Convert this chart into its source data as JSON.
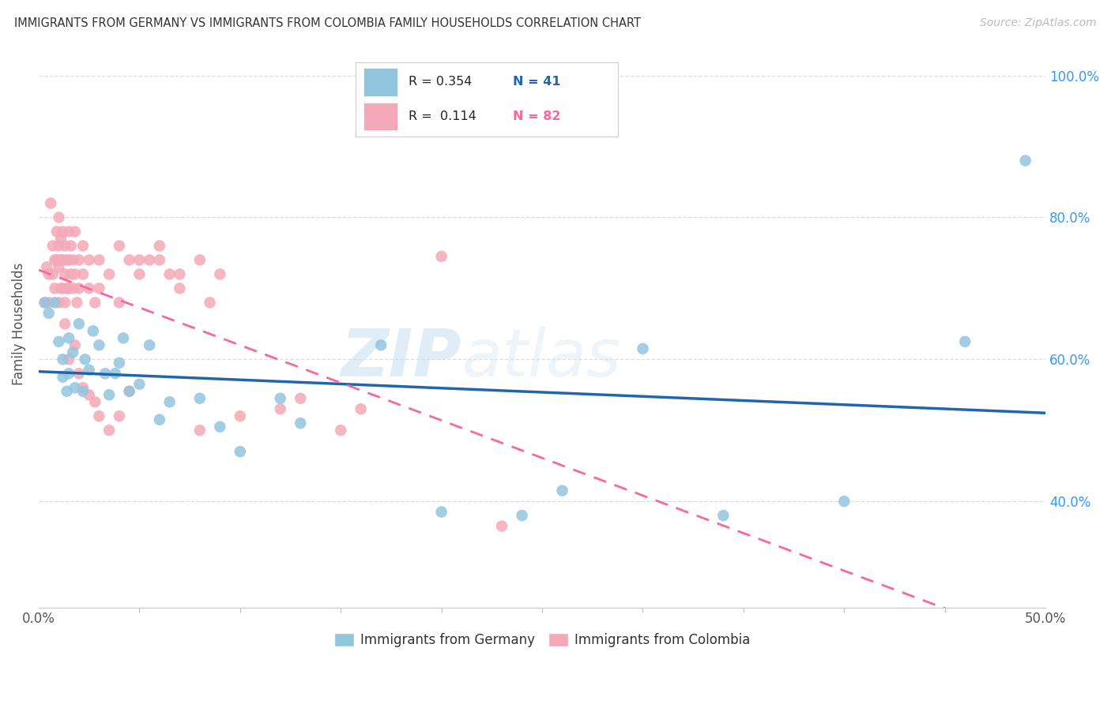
{
  "title": "IMMIGRANTS FROM GERMANY VS IMMIGRANTS FROM COLOMBIA FAMILY HOUSEHOLDS CORRELATION CHART",
  "source": "Source: ZipAtlas.com",
  "ylabel": "Family Households",
  "blue_color": "#92c5de",
  "pink_color": "#f4a9b8",
  "blue_line_color": "#2166ac",
  "pink_line_color": "#f768a1",
  "watermark_zip": "ZIP",
  "watermark_atlas": "atlas",
  "xlim": [
    0.0,
    0.5
  ],
  "ylim": [
    0.25,
    1.05
  ],
  "ytick_vals": [
    0.4,
    0.6,
    0.8,
    1.0
  ],
  "ytick_labels": [
    "40.0%",
    "60.0%",
    "80.0%",
    "100.0%"
  ],
  "ytick_right_color": "#3399ff",
  "blue_scatter": [
    [
      0.003,
      0.68
    ],
    [
      0.005,
      0.665
    ],
    [
      0.008,
      0.68
    ],
    [
      0.01,
      0.625
    ],
    [
      0.012,
      0.6
    ],
    [
      0.012,
      0.575
    ],
    [
      0.014,
      0.555
    ],
    [
      0.015,
      0.63
    ],
    [
      0.015,
      0.58
    ],
    [
      0.017,
      0.61
    ],
    [
      0.018,
      0.56
    ],
    [
      0.02,
      0.65
    ],
    [
      0.022,
      0.555
    ],
    [
      0.023,
      0.6
    ],
    [
      0.025,
      0.585
    ],
    [
      0.027,
      0.64
    ],
    [
      0.03,
      0.62
    ],
    [
      0.033,
      0.58
    ],
    [
      0.035,
      0.55
    ],
    [
      0.038,
      0.58
    ],
    [
      0.04,
      0.595
    ],
    [
      0.042,
      0.63
    ],
    [
      0.045,
      0.555
    ],
    [
      0.05,
      0.565
    ],
    [
      0.055,
      0.62
    ],
    [
      0.06,
      0.515
    ],
    [
      0.065,
      0.54
    ],
    [
      0.08,
      0.545
    ],
    [
      0.09,
      0.505
    ],
    [
      0.1,
      0.47
    ],
    [
      0.12,
      0.545
    ],
    [
      0.13,
      0.51
    ],
    [
      0.17,
      0.62
    ],
    [
      0.2,
      0.385
    ],
    [
      0.24,
      0.38
    ],
    [
      0.26,
      0.415
    ],
    [
      0.3,
      0.615
    ],
    [
      0.34,
      0.38
    ],
    [
      0.4,
      0.4
    ],
    [
      0.46,
      0.625
    ],
    [
      0.49,
      0.88
    ]
  ],
  "pink_scatter": [
    [
      0.003,
      0.68
    ],
    [
      0.004,
      0.73
    ],
    [
      0.005,
      0.72
    ],
    [
      0.005,
      0.68
    ],
    [
      0.006,
      0.82
    ],
    [
      0.007,
      0.76
    ],
    [
      0.007,
      0.72
    ],
    [
      0.008,
      0.74
    ],
    [
      0.008,
      0.7
    ],
    [
      0.009,
      0.78
    ],
    [
      0.009,
      0.74
    ],
    [
      0.01,
      0.8
    ],
    [
      0.01,
      0.76
    ],
    [
      0.01,
      0.73
    ],
    [
      0.011,
      0.77
    ],
    [
      0.011,
      0.74
    ],
    [
      0.011,
      0.7
    ],
    [
      0.012,
      0.78
    ],
    [
      0.012,
      0.74
    ],
    [
      0.012,
      0.7
    ],
    [
      0.013,
      0.76
    ],
    [
      0.013,
      0.72
    ],
    [
      0.013,
      0.68
    ],
    [
      0.014,
      0.74
    ],
    [
      0.014,
      0.7
    ],
    [
      0.015,
      0.78
    ],
    [
      0.015,
      0.74
    ],
    [
      0.015,
      0.7
    ],
    [
      0.016,
      0.76
    ],
    [
      0.016,
      0.72
    ],
    [
      0.017,
      0.74
    ],
    [
      0.017,
      0.7
    ],
    [
      0.018,
      0.78
    ],
    [
      0.018,
      0.72
    ],
    [
      0.019,
      0.68
    ],
    [
      0.02,
      0.74
    ],
    [
      0.02,
      0.7
    ],
    [
      0.022,
      0.76
    ],
    [
      0.022,
      0.72
    ],
    [
      0.025,
      0.74
    ],
    [
      0.025,
      0.7
    ],
    [
      0.028,
      0.68
    ],
    [
      0.03,
      0.74
    ],
    [
      0.03,
      0.7
    ],
    [
      0.035,
      0.72
    ],
    [
      0.04,
      0.76
    ],
    [
      0.04,
      0.68
    ],
    [
      0.045,
      0.74
    ],
    [
      0.05,
      0.72
    ],
    [
      0.055,
      0.74
    ],
    [
      0.06,
      0.76
    ],
    [
      0.065,
      0.72
    ],
    [
      0.07,
      0.7
    ],
    [
      0.08,
      0.74
    ],
    [
      0.085,
      0.68
    ],
    [
      0.09,
      0.72
    ],
    [
      0.01,
      0.68
    ],
    [
      0.013,
      0.65
    ],
    [
      0.015,
      0.6
    ],
    [
      0.018,
      0.62
    ],
    [
      0.02,
      0.58
    ],
    [
      0.022,
      0.56
    ],
    [
      0.025,
      0.55
    ],
    [
      0.028,
      0.54
    ],
    [
      0.03,
      0.52
    ],
    [
      0.035,
      0.5
    ],
    [
      0.04,
      0.52
    ],
    [
      0.045,
      0.555
    ],
    [
      0.05,
      0.74
    ],
    [
      0.06,
      0.74
    ],
    [
      0.07,
      0.72
    ],
    [
      0.08,
      0.5
    ],
    [
      0.1,
      0.52
    ],
    [
      0.12,
      0.53
    ],
    [
      0.13,
      0.545
    ],
    [
      0.15,
      0.5
    ],
    [
      0.16,
      0.53
    ],
    [
      0.2,
      0.745
    ],
    [
      0.23,
      0.365
    ]
  ]
}
